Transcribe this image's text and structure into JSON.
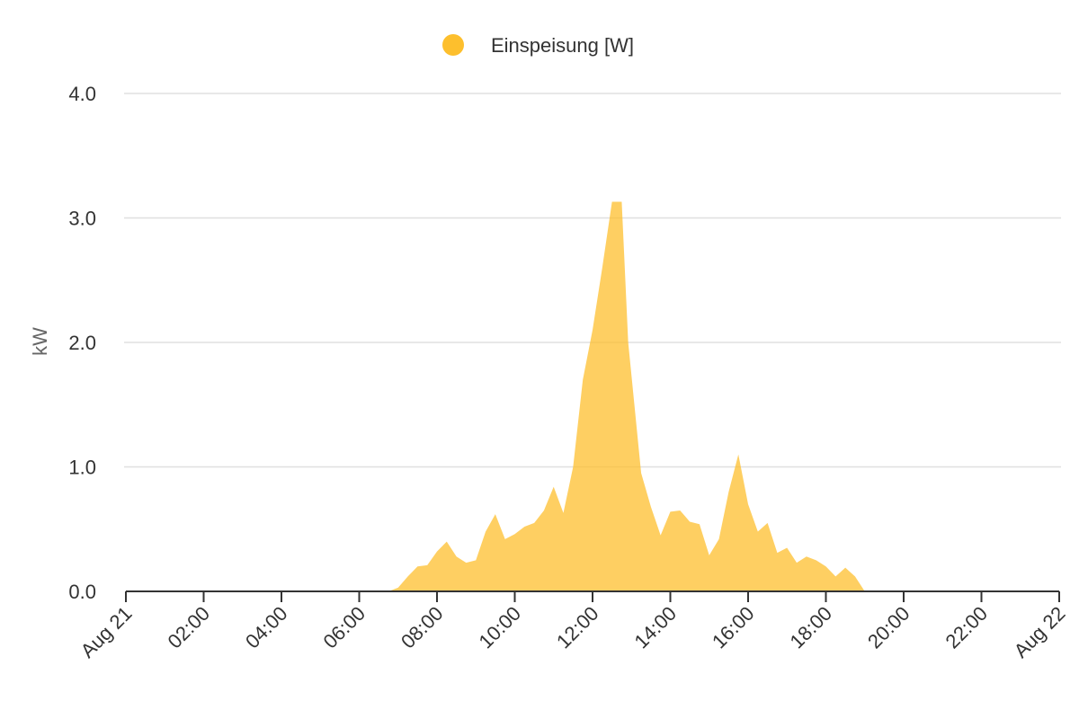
{
  "chart_data": {
    "type": "area",
    "title": "",
    "xlabel": "",
    "ylabel": "kW",
    "ylim": [
      0,
      4.0
    ],
    "y_ticks": [
      "0.0",
      "1.0",
      "2.0",
      "3.0",
      "4.0"
    ],
    "x_range": [
      "Aug 21 00:00",
      "Aug 22 00:00"
    ],
    "x_ticks": [
      "Aug 21",
      "02:00",
      "04:00",
      "06:00",
      "08:00",
      "10:00",
      "12:00",
      "14:00",
      "16:00",
      "18:00",
      "20:00",
      "22:00",
      "Aug 22"
    ],
    "grid": true,
    "legend_position": "top-center",
    "series": [
      {
        "name": "Einspeisung [W]",
        "color": "#fdbf2d",
        "x": [
          "00:00",
          "06:45",
          "07:00",
          "07:15",
          "07:30",
          "07:45",
          "08:00",
          "08:15",
          "08:30",
          "08:45",
          "09:00",
          "09:15",
          "09:30",
          "09:45",
          "10:00",
          "10:15",
          "10:30",
          "10:45",
          "11:00",
          "11:15",
          "11:30",
          "11:45",
          "12:00",
          "12:15",
          "12:30",
          "12:45",
          "12:55",
          "13:15",
          "13:30",
          "13:45",
          "14:00",
          "14:15",
          "14:30",
          "14:45",
          "15:00",
          "15:15",
          "15:30",
          "15:45",
          "16:00",
          "16:15",
          "16:30",
          "16:45",
          "17:00",
          "17:15",
          "17:30",
          "17:45",
          "18:00",
          "18:15",
          "18:30",
          "18:45",
          "19:00",
          "24:00"
        ],
        "values": [
          0,
          0,
          0.03,
          0.12,
          0.2,
          0.21,
          0.32,
          0.4,
          0.28,
          0.23,
          0.25,
          0.48,
          0.62,
          0.42,
          0.46,
          0.52,
          0.55,
          0.65,
          0.84,
          0.63,
          1.0,
          1.7,
          2.1,
          2.6,
          3.13,
          3.13,
          2.0,
          0.95,
          0.68,
          0.45,
          0.64,
          0.65,
          0.56,
          0.54,
          0.29,
          0.42,
          0.8,
          1.1,
          0.7,
          0.48,
          0.55,
          0.31,
          0.35,
          0.23,
          0.28,
          0.25,
          0.2,
          0.12,
          0.19,
          0.12,
          0,
          0
        ]
      }
    ]
  }
}
